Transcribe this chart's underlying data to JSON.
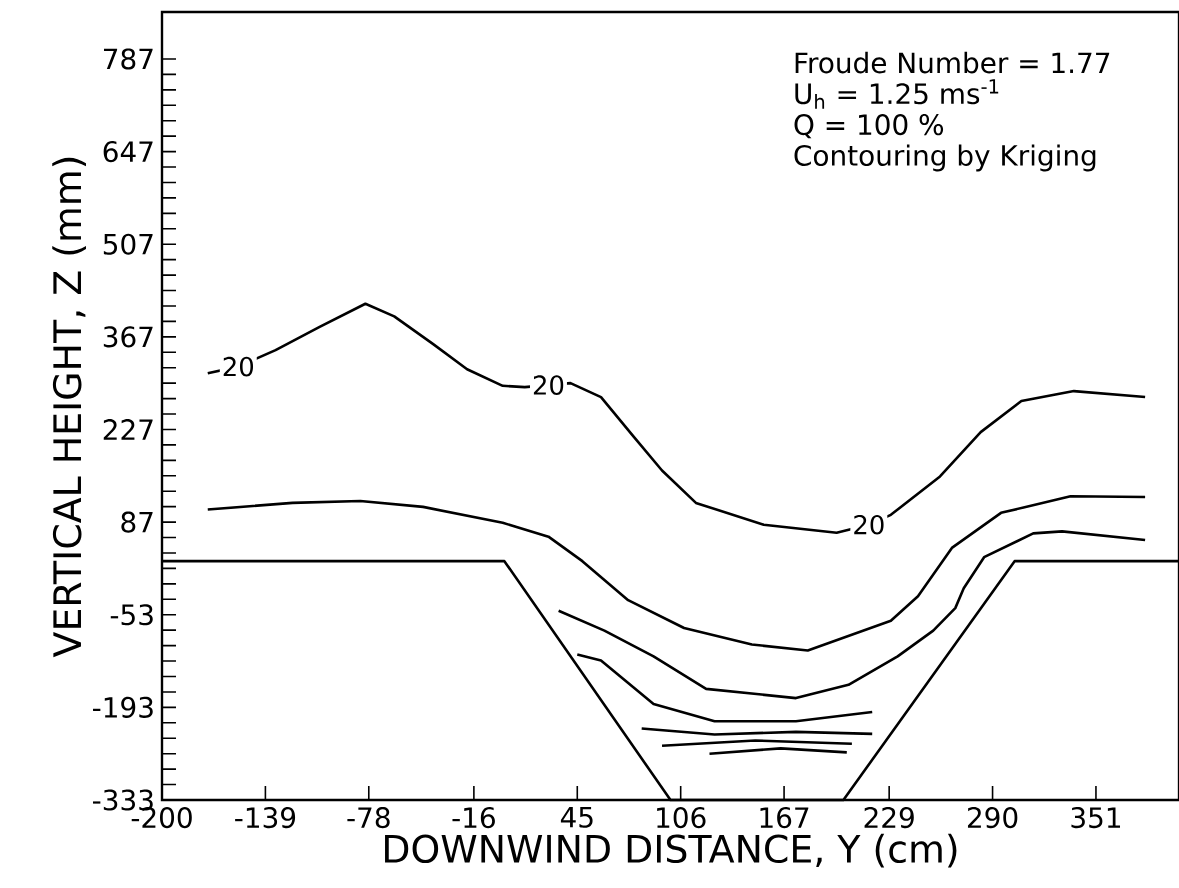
{
  "chart_data": {
    "type": "line",
    "xlabel": "DOWNWIND DISTANCE, Y (cm)",
    "ylabel": "VERTICAL HEIGHT, Z (mm)",
    "xlim": [
      -200,
      400
    ],
    "ylim": [
      -333,
      858
    ],
    "xticks": [
      -200,
      -139,
      -78,
      -16,
      45,
      106,
      167,
      229,
      290,
      351
    ],
    "yticks": [
      -333,
      -193,
      -53,
      87,
      227,
      367,
      507,
      647,
      787
    ],
    "marker": "none",
    "line_style": "solid",
    "annotations": [
      "Froude Number = 1.77",
      "U$_{h}$ = 1.25 ms$^{-1}$",
      "Q = 100 %",
      "Contouring by Kriging",
      {
        "text": "20",
        "x": -155,
        "y": 322
      },
      {
        "text": "20",
        "x": 28,
        "y": 294
      },
      {
        "text": "20",
        "x": 217,
        "y": 83
      }
    ],
    "series": [
      {
        "color": "#000000",
        "x": [
          -173,
          -155,
          -133,
          -107,
          -80,
          -63,
          -40,
          -20,
          1,
          14,
          28,
          41,
          59,
          78,
          95,
          115,
          155,
          198,
          217,
          230,
          259,
          283,
          307,
          338,
          380
        ],
        "values": [
          312,
          322,
          347,
          382,
          417,
          398,
          356,
          318,
          293,
          291,
          294,
          297,
          276,
          217,
          165,
          116,
          83,
          71,
          83,
          98,
          156,
          223,
          270,
          285,
          276
        ]
      },
      {
        "color": "#000000",
        "x": [
          -173,
          -123,
          -83,
          -46,
          1,
          28,
          48,
          75,
          108,
          148,
          181,
          230,
          246,
          266,
          295,
          336,
          380
        ],
        "values": [
          106,
          116,
          119,
          110,
          86,
          65,
          28,
          -31,
          -73,
          -98,
          -107,
          -62,
          -25,
          48,
          101,
          126,
          125
        ]
      },
      {
        "color": "#000000",
        "x": [
          34,
          61,
          90,
          121,
          174,
          205,
          234,
          255,
          268,
          273,
          285,
          314,
          331,
          380
        ],
        "values": [
          -47,
          -77,
          -116,
          -165,
          -179,
          -159,
          -116,
          -77,
          -43,
          -13,
          34,
          70,
          73,
          60
        ]
      },
      {
        "color": "#000000",
        "x": [
          45,
          59,
          90,
          126,
          174,
          219
        ],
        "values": [
          -113,
          -122,
          -188,
          -214,
          -214,
          -200
        ]
      },
      {
        "color": "#000000",
        "x": [
          83,
          126,
          174,
          219
        ],
        "values": [
          -225,
          -234,
          -230,
          -233
        ]
      },
      {
        "color": "#000000",
        "x": [
          95,
          150,
          207
        ],
        "values": [
          -251,
          -243,
          -248
        ]
      },
      {
        "color": "#000000",
        "x": [
          123,
          165,
          204
        ],
        "values": [
          -263,
          -255,
          -261
        ]
      },
      {
        "color": "#000000",
        "x": [
          -200,
          2,
          100,
          202,
          303,
          400
        ],
        "values": [
          28,
          28,
          -333,
          -333,
          28,
          28
        ]
      }
    ]
  }
}
